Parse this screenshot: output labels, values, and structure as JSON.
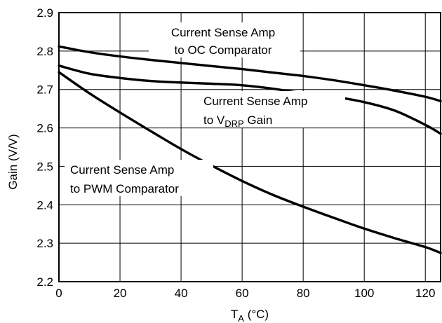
{
  "chart_data": {
    "type": "line",
    "title": "",
    "xlabel": {
      "main": "T",
      "sub": "A",
      "rest": " (°C)"
    },
    "ylabel": "Gain (V/V)",
    "xlim": [
      0,
      125
    ],
    "ylim": [
      2.2,
      2.9
    ],
    "x_ticks": [
      0,
      20,
      40,
      60,
      80,
      100,
      120
    ],
    "x_tick_labels": [
      "0",
      "20",
      "40",
      "60",
      "80",
      "100",
      "120"
    ],
    "y_ticks": [
      2.2,
      2.3,
      2.4,
      2.5,
      2.6,
      2.7,
      2.8,
      2.9
    ],
    "y_tick_labels": [
      "2.2",
      "2.3",
      "2.4",
      "2.5",
      "2.6",
      "2.7",
      "2.8",
      "2.9"
    ],
    "grid": true,
    "legend": "none",
    "line_color": "#000000",
    "series": [
      {
        "x": [
          0,
          10,
          20,
          30,
          40,
          50,
          60,
          70,
          80,
          90,
          100,
          110,
          120,
          125
        ],
        "y": [
          2.812,
          2.797,
          2.786,
          2.777,
          2.769,
          2.761,
          2.753,
          2.744,
          2.735,
          2.724,
          2.711,
          2.697,
          2.681,
          2.67
        ]
      },
      {
        "x": [
          0,
          10,
          20,
          30,
          40,
          50,
          60,
          70,
          80,
          90,
          100,
          110,
          120,
          125
        ],
        "y": [
          2.762,
          2.741,
          2.73,
          2.722,
          2.718,
          2.715,
          2.711,
          2.702,
          2.69,
          2.681,
          2.667,
          2.645,
          2.608,
          2.585
        ]
      },
      {
        "x": [
          0,
          10,
          20,
          30,
          40,
          50,
          60,
          70,
          80,
          90,
          100,
          110,
          120,
          125
        ],
        "y": [
          2.745,
          2.69,
          2.64,
          2.592,
          2.545,
          2.502,
          2.462,
          2.426,
          2.395,
          2.366,
          2.338,
          2.313,
          2.29,
          2.275
        ]
      }
    ],
    "annotations": [
      {
        "lines": [
          {
            "text": "Current Sense Amp"
          },
          {
            "text": "to OC Comparator"
          }
        ]
      },
      {
        "lines": [
          {
            "text": "Current Sense Amp"
          },
          {
            "pre": "to V",
            "sub": "DRP",
            "post": " Gain"
          }
        ]
      },
      {
        "lines": [
          {
            "text": "Current Sense Amp"
          },
          {
            "text": "to PWM Comparator"
          }
        ]
      }
    ]
  }
}
